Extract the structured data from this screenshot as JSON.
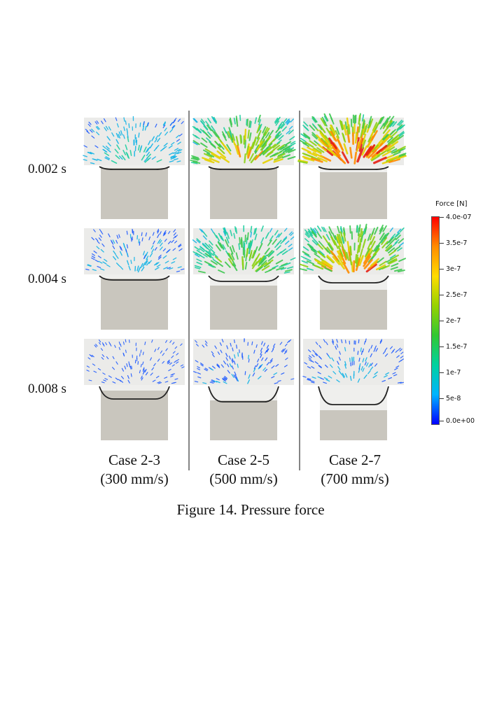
{
  "figure": {
    "caption": "Figure  14. Pressure force",
    "time_labels": [
      "0.002 s",
      "0.004 s",
      "0.008 s"
    ],
    "cases": [
      {
        "name": "Case 2-3",
        "speed": "(300 mm/s)"
      },
      {
        "name": "Case 2-5",
        "speed": "(500 mm/s)"
      },
      {
        "name": "Case 2-7",
        "speed": "(700 mm/s)"
      }
    ],
    "colorbar": {
      "title": "Force [N]",
      "ticks": [
        "4.0e-07",
        "3.5e-7",
        "3e-7",
        "2.5e-7",
        "2e-7",
        "1.5e-7",
        "1e-7",
        "5e-8",
        "0.0e+00"
      ],
      "colors": [
        "#0000ff",
        "#00b4ff",
        "#00d2a0",
        "#32c832",
        "#96d200",
        "#ffdc00",
        "#ff8c00",
        "#ff0000"
      ]
    }
  }
}
